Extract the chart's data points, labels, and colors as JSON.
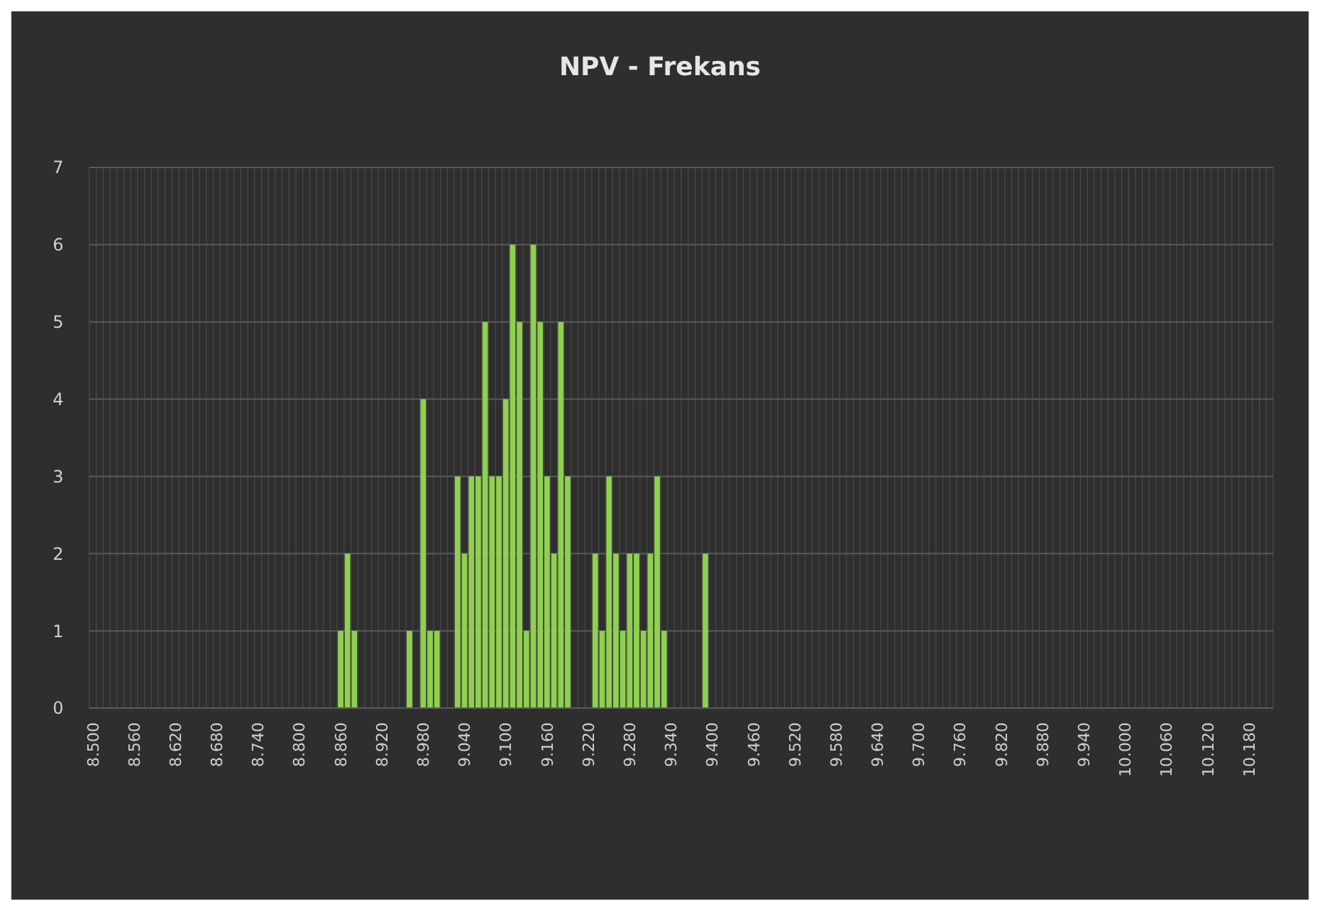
{
  "chart_data": {
    "type": "bar",
    "title": "NPV - Frekans",
    "categories": [
      "8.500",
      null,
      null,
      null,
      null,
      null,
      "8.560",
      null,
      null,
      null,
      null,
      null,
      "8.620",
      null,
      null,
      null,
      null,
      null,
      "8.680",
      null,
      null,
      null,
      null,
      null,
      "8.740",
      null,
      null,
      null,
      null,
      null,
      "8.800",
      null,
      null,
      null,
      null,
      null,
      "8.860",
      null,
      null,
      null,
      null,
      null,
      "8.920",
      null,
      null,
      null,
      null,
      null,
      "8.980",
      null,
      null,
      null,
      null,
      null,
      "9.040",
      null,
      null,
      null,
      null,
      null,
      "9.100",
      null,
      null,
      null,
      null,
      null,
      "9.160",
      null,
      null,
      null,
      null,
      null,
      "9.220",
      null,
      null,
      null,
      null,
      null,
      "9.280",
      null,
      null,
      null,
      null,
      null,
      "9.340",
      null,
      null,
      null,
      null,
      null,
      "9.400",
      null,
      null,
      null,
      null,
      null,
      "9.460",
      null,
      null,
      null,
      null,
      null,
      "9.520",
      null,
      null,
      null,
      null,
      null,
      "9.580",
      null,
      null,
      null,
      null,
      null,
      "9.640",
      null,
      null,
      null,
      null,
      null,
      "9.700",
      null,
      null,
      null,
      null,
      null,
      "9.760",
      null,
      null,
      null,
      null,
      null,
      "9.820",
      null,
      null,
      null,
      null,
      null,
      "9.880",
      null,
      null,
      null,
      null,
      null,
      "9.940",
      null,
      null,
      null,
      null,
      null,
      "10.000",
      null,
      null,
      null,
      null,
      null,
      "10.060",
      null,
      null,
      null,
      null,
      null,
      "10.120",
      null,
      null,
      null,
      null,
      null,
      "10.180",
      null,
      null,
      null
    ],
    "values": [
      0,
      0,
      0,
      0,
      0,
      0,
      0,
      0,
      0,
      0,
      0,
      0,
      0,
      0,
      0,
      0,
      0,
      0,
      0,
      0,
      0,
      0,
      0,
      0,
      0,
      0,
      0,
      0,
      0,
      0,
      0,
      0,
      0,
      0,
      0,
      0,
      1,
      2,
      1,
      0,
      0,
      0,
      0,
      0,
      0,
      0,
      1,
      0,
      4,
      1,
      1,
      0,
      0,
      3,
      2,
      3,
      3,
      5,
      3,
      3,
      4,
      6,
      5,
      1,
      6,
      5,
      3,
      2,
      5,
      3,
      0,
      0,
      0,
      2,
      1,
      3,
      2,
      1,
      2,
      2,
      1,
      2,
      3,
      1,
      0,
      0,
      0,
      0,
      0,
      2,
      0,
      0,
      0,
      0,
      0,
      0,
      0,
      0,
      0,
      0,
      0,
      0,
      0,
      0,
      0,
      0,
      0,
      0,
      0,
      0,
      0,
      0,
      0,
      0,
      0,
      0,
      0,
      0,
      0,
      0,
      0,
      0,
      0,
      0,
      0,
      0,
      0,
      0,
      0,
      0,
      0,
      0,
      0,
      0,
      0,
      0,
      0,
      0,
      0,
      0,
      0,
      0,
      0,
      0,
      0,
      0,
      0,
      0,
      0,
      0,
      0,
      0,
      0,
      0,
      0,
      0,
      0,
      0,
      0,
      0,
      0,
      0,
      0,
      0,
      0,
      0,
      0,
      0,
      0,
      0,
      0,
      0
    ],
    "color": "#8fd14f",
    "ylim": [
      0,
      7
    ],
    "yticks": [
      0,
      1,
      2,
      3,
      4,
      5,
      6,
      7
    ],
    "grid": true
  }
}
